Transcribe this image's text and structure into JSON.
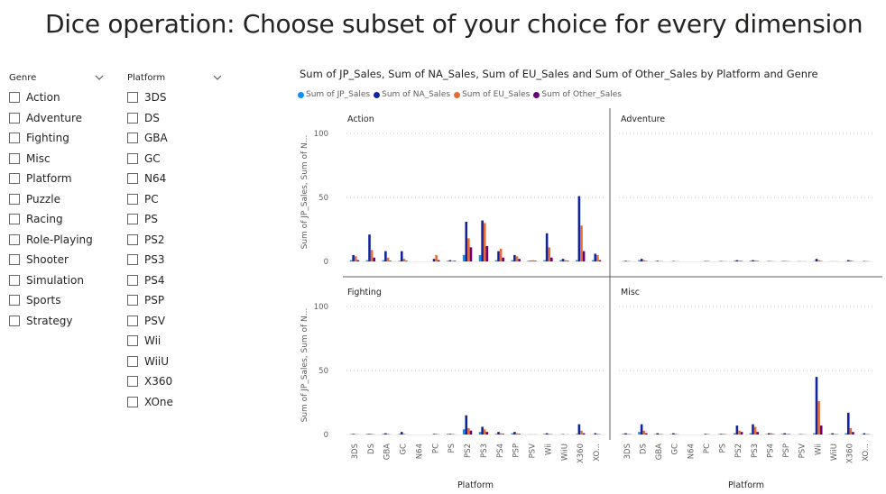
{
  "page": {
    "title": "Dice operation: Choose subset of your choice for every dimension"
  },
  "genre_slicer": {
    "title": "Genre",
    "items": [
      "Action",
      "Adventure",
      "Fighting",
      "Misc",
      "Platform",
      "Puzzle",
      "Racing",
      "Role-Playing",
      "Shooter",
      "Simulation",
      "Sports",
      "Strategy"
    ]
  },
  "platform_slicer": {
    "title": "Platform",
    "items": [
      "3DS",
      "DS",
      "GBA",
      "GC",
      "N64",
      "PC",
      "PS",
      "PS2",
      "PS3",
      "PS4",
      "PSP",
      "PSV",
      "Wii",
      "WiiU",
      "X360",
      "XOne"
    ]
  },
  "colors": {
    "jp": "#118dff",
    "na": "#12239e",
    "eu": "#e66c37",
    "other": "#6b007b",
    "grid": "#c8c6c4",
    "divider": "#605e5c"
  },
  "chart_data": {
    "type": "bar",
    "title": "Sum of JP_Sales, Sum of NA_Sales, Sum of EU_Sales and Sum of Other_Sales by Platform and Genre",
    "xlabel": "Platform",
    "ylabel": "Sum of JP_Sales, Sum of N...",
    "ylim": [
      0,
      100
    ],
    "yticks": [
      "0",
      "50",
      "100"
    ],
    "grid": true,
    "legend_position": "top-left",
    "legend": [
      "Sum of JP_Sales",
      "Sum of NA_Sales",
      "Sum of EU_Sales",
      "Sum of Other_Sales"
    ],
    "categories": [
      "3DS",
      "DS",
      "GBA",
      "GC",
      "N64",
      "PC",
      "PS",
      "PS2",
      "PS3",
      "PS4",
      "PSP",
      "PSV",
      "Wii",
      "WiiU",
      "X360",
      "XO..."
    ],
    "panels": [
      {
        "name": "Action",
        "series": [
          {
            "name": "Sum of JP_Sales",
            "values": [
              1,
              1,
              1,
              0.5,
              0,
              0,
              0.5,
              5,
              5,
              1,
              1,
              0.5,
              1,
              1,
              1,
              1
            ]
          },
          {
            "name": "Sum of NA_Sales",
            "values": [
              5,
              21,
              8,
              8,
              0,
              2,
              1,
              31,
              32,
              8,
              5,
              0.5,
              22,
              2,
              51,
              6
            ]
          },
          {
            "name": "Sum of EU_Sales",
            "values": [
              4,
              9,
              3,
              2,
              0,
              5,
              0.5,
              18,
              30,
              10,
              4,
              1,
              11,
              1,
              28,
              5
            ]
          },
          {
            "name": "Sum of Other_Sales",
            "values": [
              1,
              3,
              0.5,
              0.5,
              0,
              1,
              0.5,
              11,
              12,
              3,
              2,
              0.5,
              3,
              0.5,
              8,
              1
            ]
          }
        ]
      },
      {
        "name": "Adventure",
        "series": [
          {
            "name": "Sum of JP_Sales",
            "values": [
              0.3,
              1,
              0.2,
              0.1,
              0,
              0,
              0.2,
              0.5,
              0.5,
              0.1,
              0.3,
              0.2,
              0.3,
              0.1,
              0.2,
              0.1
            ]
          },
          {
            "name": "Sum of NA_Sales",
            "values": [
              0.5,
              2,
              0.5,
              0.3,
              0,
              0.3,
              0.3,
              1,
              1,
              0.3,
              0.3,
              0.1,
              2,
              0.1,
              1,
              0.3
            ]
          },
          {
            "name": "Sum of EU_Sales",
            "values": [
              0.4,
              1,
              0.3,
              0.2,
              0,
              0.5,
              0.2,
              0.7,
              0.8,
              0.3,
              0.3,
              0.1,
              1,
              0.1,
              0.8,
              0.3
            ]
          },
          {
            "name": "Sum of Other_Sales",
            "values": [
              0.1,
              0.3,
              0.1,
              0.1,
              0,
              0.1,
              0.1,
              0.3,
              0.3,
              0.1,
              0.1,
              0.1,
              0.3,
              0.1,
              0.2,
              0.1
            ]
          }
        ]
      },
      {
        "name": "Fighting",
        "series": [
          {
            "name": "Sum of JP_Sales",
            "values": [
              0.3,
              0.5,
              0.5,
              0.5,
              0,
              0,
              0.5,
              4,
              2,
              0.5,
              1,
              0.1,
              0.5,
              0.1,
              0.5,
              0.1
            ]
          },
          {
            "name": "Sum of NA_Sales",
            "values": [
              0.5,
              0.5,
              1,
              2,
              0,
              0.5,
              0.5,
              15,
              6,
              2,
              2,
              0.1,
              1,
              0.3,
              8,
              1
            ]
          },
          {
            "name": "Sum of EU_Sales",
            "values": [
              0.3,
              0.5,
              0.5,
              0.5,
              0,
              0.5,
              0.5,
              5,
              4,
              1,
              1,
              0.1,
              0.5,
              0.1,
              3,
              0.5
            ]
          },
          {
            "name": "Sum of Other_Sales",
            "values": [
              0.1,
              0.1,
              0.1,
              0.1,
              0,
              0.1,
              0.1,
              3,
              2,
              0.5,
              0.5,
              0.1,
              0.2,
              0.1,
              1,
              0.2
            ]
          }
        ]
      },
      {
        "name": "Misc",
        "series": [
          {
            "name": "Sum of JP_Sales",
            "values": [
              0.5,
              2,
              0.3,
              0.3,
              0,
              0,
              0.3,
              1,
              1,
              0.3,
              0.5,
              0.2,
              1,
              0.3,
              1,
              0.2
            ]
          },
          {
            "name": "Sum of NA_Sales",
            "values": [
              1,
              8,
              1,
              1,
              0,
              0.5,
              0.5,
              7,
              8,
              1,
              1,
              0.3,
              45,
              1,
              17,
              1
            ]
          },
          {
            "name": "Sum of EU_Sales",
            "values": [
              0.5,
              3,
              0.5,
              0.5,
              0,
              0.5,
              0.5,
              3,
              6,
              1,
              0.5,
              0.3,
              26,
              0.5,
              5,
              0.5
            ]
          },
          {
            "name": "Sum of Other_Sales",
            "values": [
              0.2,
              1,
              0.2,
              0.1,
              0,
              0.1,
              0.2,
              2,
              2,
              0.3,
              0.3,
              0.1,
              7,
              0.2,
              2,
              0.2
            ]
          }
        ]
      }
    ]
  }
}
